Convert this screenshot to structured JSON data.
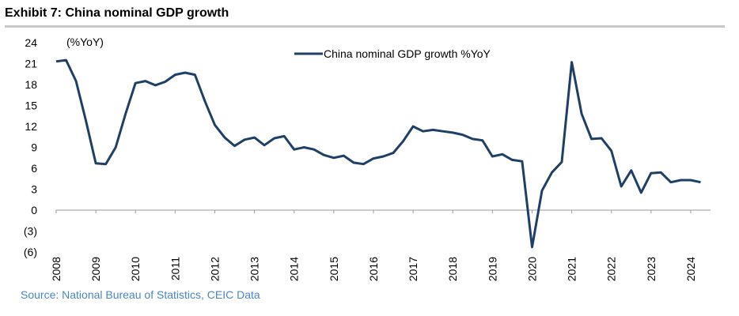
{
  "header": {
    "title": "Exhibit 7: China nominal GDP growth"
  },
  "source": "Source: National Bureau of Statistics, CEIC Data",
  "chart_data": {
    "type": "line",
    "y_unit_label": "(%YoY)",
    "ylim": [
      -6,
      24
    ],
    "y_ticks": [
      24,
      21,
      18,
      15,
      12,
      9,
      6,
      3,
      0,
      -3,
      -6
    ],
    "y_tick_labels": [
      "24",
      "21",
      "18",
      "15",
      "12",
      "9",
      "6",
      "3",
      "0",
      "(3)",
      "(6)"
    ],
    "x_tick_labels": [
      "2008",
      "2009",
      "2010",
      "2011",
      "2012",
      "2013",
      "2014",
      "2015",
      "2016",
      "2017",
      "2018",
      "2019",
      "2020",
      "2021",
      "2022",
      "2023",
      "2024"
    ],
    "grid": false,
    "legend_position": "top-center",
    "series": [
      {
        "name": "China nominal GDP growth %YoY",
        "color": "#1f3f66",
        "x": [
          "2008Q1",
          "2008Q2",
          "2008Q3",
          "2008Q4",
          "2009Q1",
          "2009Q2",
          "2009Q3",
          "2009Q4",
          "2010Q1",
          "2010Q2",
          "2010Q3",
          "2010Q4",
          "2011Q1",
          "2011Q2",
          "2011Q3",
          "2011Q4",
          "2012Q1",
          "2012Q2",
          "2012Q3",
          "2012Q4",
          "2013Q1",
          "2013Q2",
          "2013Q3",
          "2013Q4",
          "2014Q1",
          "2014Q2",
          "2014Q3",
          "2014Q4",
          "2015Q1",
          "2015Q2",
          "2015Q3",
          "2015Q4",
          "2016Q1",
          "2016Q2",
          "2016Q3",
          "2016Q4",
          "2017Q1",
          "2017Q2",
          "2017Q3",
          "2017Q4",
          "2018Q1",
          "2018Q2",
          "2018Q3",
          "2018Q4",
          "2019Q1",
          "2019Q2",
          "2019Q3",
          "2019Q4",
          "2020Q1",
          "2020Q2",
          "2020Q3",
          "2020Q4",
          "2021Q1",
          "2021Q2",
          "2021Q3",
          "2021Q4",
          "2022Q1",
          "2022Q2",
          "2022Q3",
          "2022Q4",
          "2023Q1",
          "2023Q2",
          "2023Q3",
          "2023Q4",
          "2024Q1",
          "2024Q2"
        ],
        "values": [
          21.3,
          21.5,
          18.5,
          12.8,
          6.7,
          6.6,
          9.0,
          13.8,
          18.2,
          18.5,
          17.9,
          18.4,
          19.4,
          19.7,
          19.4,
          15.6,
          12.2,
          10.4,
          9.2,
          10.1,
          10.4,
          9.3,
          10.3,
          10.6,
          8.7,
          9.0,
          8.7,
          7.9,
          7.5,
          7.8,
          6.8,
          6.6,
          7.4,
          7.7,
          8.2,
          9.9,
          12.0,
          11.3,
          11.5,
          11.3,
          11.1,
          10.8,
          10.2,
          10.0,
          7.7,
          8.0,
          7.2,
          7.0,
          -5.3,
          2.8,
          5.4,
          6.9,
          21.2,
          13.8,
          10.2,
          10.3,
          8.5,
          3.4,
          5.7,
          2.5,
          5.3,
          5.4,
          4.0,
          4.3,
          4.3,
          4.0
        ]
      }
    ]
  }
}
